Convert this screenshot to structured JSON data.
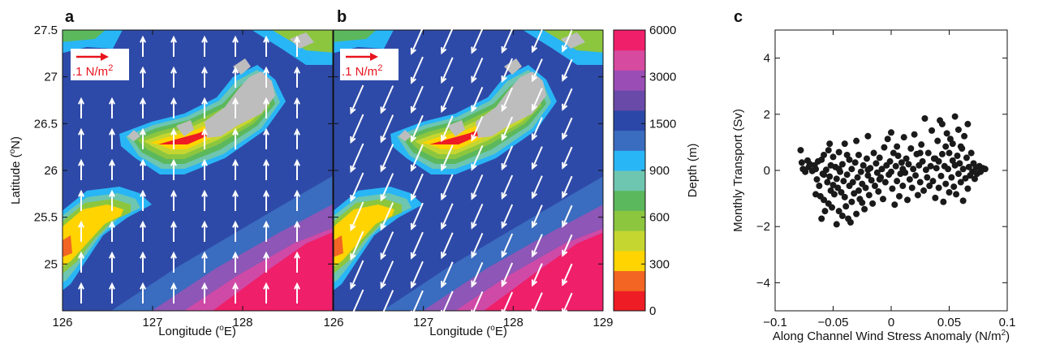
{
  "panels": {
    "a": "a",
    "b": "b",
    "c": "c"
  },
  "map_axes": {
    "xlabel_prefix": "Longitude (",
    "xlabel_sup": "o",
    "xlabel_suffix": "E)",
    "ylabel_prefix": "Latitude (",
    "ylabel_sup": "o",
    "ylabel_suffix": "N)",
    "xlim": [
      126,
      129
    ],
    "ylim": [
      24.5,
      27.5
    ],
    "xticks": [
      "126",
      "127",
      "128"
    ],
    "xticks_b": [
      "126",
      "127",
      "128",
      "129"
    ],
    "yticks": [
      "27.5",
      "27",
      "26.5",
      "26",
      "25.5",
      "25"
    ],
    "ytick_values": [
      27.5,
      27,
      26.5,
      26,
      25.5,
      25
    ]
  },
  "scale_vector": {
    "label_main": ".1 N/m",
    "label_sup": "2",
    "color": "#e8141e"
  },
  "colorbar": {
    "label": "Depth (m)",
    "ticks": [
      "6000",
      "3000",
      "1500",
      "900",
      "600",
      "300",
      "0"
    ],
    "colors": [
      "#ee1c24",
      "#f26522",
      "#ffd400",
      "#c6d630",
      "#8cc63f",
      "#5cb85c",
      "#6ec6b0",
      "#29b6f6",
      "#3a6cc0",
      "#2b48a8",
      "#6a4aa8",
      "#9b4db6",
      "#d64aa0",
      "#f01f6a"
    ]
  },
  "colors": {
    "deep_ocean": "#2e4aa8",
    "mid_ocean": "#3a6cc0",
    "abyss": "#ef1f6a",
    "abyss_mid": "#cf4aa6",
    "abyss_edge": "#8e56b6",
    "land": "#bdbdbd",
    "vector": "#ffffff"
  },
  "chart_data": {
    "type": "scatter",
    "xlabel_main": "Along Channel Wind Stress Anomaly (N/m",
    "xlabel_sup": "2",
    "xlabel_end": ")",
    "ylabel": "Monthly Transport (Sv)",
    "xlim": [
      -0.1,
      0.1
    ],
    "ylim": [
      -5,
      5
    ],
    "xticks": [
      "−0.1",
      "−0.05",
      "0",
      "0.05",
      "0.1"
    ],
    "xtick_values": [
      -0.1,
      -0.05,
      0,
      0.05,
      0.1
    ],
    "yticks": [
      "4",
      "2",
      "0",
      "−2",
      "−4"
    ],
    "ytick_values": [
      4,
      2,
      0,
      -2,
      -4
    ],
    "grid": false,
    "points": [
      [
        -0.078,
        0.72
      ],
      [
        -0.077,
        0.28
      ],
      [
        -0.076,
        0.05
      ],
      [
        -0.074,
        -0.05
      ],
      [
        -0.072,
        0.35
      ],
      [
        -0.071,
        0.12
      ],
      [
        -0.07,
        0.22
      ],
      [
        -0.068,
        -0.02
      ],
      [
        -0.066,
        0.18
      ],
      [
        -0.065,
        0.05
      ],
      [
        -0.064,
        -0.32
      ],
      [
        -0.063,
        0.32
      ],
      [
        -0.062,
        -0.55
      ],
      [
        -0.061,
        -0.92
      ],
      [
        -0.06,
        -1.72
      ],
      [
        -0.06,
        0.38
      ],
      [
        -0.059,
        -0.12
      ],
      [
        -0.058,
        -1.05
      ],
      [
        -0.058,
        0.55
      ],
      [
        -0.057,
        -1.45
      ],
      [
        -0.056,
        0.02
      ],
      [
        -0.055,
        -0.42
      ],
      [
        -0.054,
        0.72
      ],
      [
        -0.054,
        -1.18
      ],
      [
        -0.053,
        -0.22
      ],
      [
        -0.052,
        0.18
      ],
      [
        -0.052,
        -0.72
      ],
      [
        -0.051,
        -1.32
      ],
      [
        -0.05,
        0.48
      ],
      [
        -0.05,
        -0.52
      ],
      [
        -0.049,
        -0.85
      ],
      [
        -0.048,
        0.12
      ],
      [
        -0.047,
        -1.92
      ],
      [
        -0.047,
        -0.3
      ],
      [
        -0.046,
        -0.62
      ],
      [
        -0.045,
        0.65
      ],
      [
        -0.045,
        -1.45
      ],
      [
        -0.044,
        -0.05
      ],
      [
        -0.043,
        -0.78
      ],
      [
        -0.042,
        0.22
      ],
      [
        -0.042,
        -1.62
      ],
      [
        -0.041,
        -0.38
      ],
      [
        -0.04,
        -0.95
      ],
      [
        -0.04,
        0.95
      ],
      [
        -0.039,
        -1.28
      ],
      [
        -0.038,
        -0.15
      ],
      [
        -0.037,
        -1.72
      ],
      [
        -0.036,
        0.38
      ],
      [
        -0.036,
        -0.55
      ],
      [
        -0.035,
        -1.85
      ],
      [
        -0.034,
        -1.12
      ],
      [
        -0.034,
        0.05
      ],
      [
        -0.033,
        -0.42
      ],
      [
        -0.032,
        -0.82
      ],
      [
        -0.031,
        0.28
      ],
      [
        -0.03,
        -1.55
      ],
      [
        -0.03,
        1.05
      ],
      [
        -0.029,
        -0.25
      ],
      [
        -0.028,
        -0.72
      ],
      [
        -0.028,
        0.55
      ],
      [
        -0.027,
        -1.02
      ],
      [
        -0.026,
        -0.05
      ],
      [
        -0.025,
        -0.48
      ],
      [
        -0.024,
        0.18
      ],
      [
        -0.023,
        -1.38
      ],
      [
        -0.022,
        -0.62
      ],
      [
        -0.021,
        0.42
      ],
      [
        -0.02,
        -0.18
      ],
      [
        -0.02,
        1.22
      ],
      [
        -0.019,
        -0.88
      ],
      [
        -0.018,
        0.08
      ],
      [
        -0.017,
        -0.35
      ],
      [
        -0.016,
        -1.18
      ],
      [
        -0.015,
        0.62
      ],
      [
        -0.014,
        -0.55
      ],
      [
        -0.013,
        0.25
      ],
      [
        -0.012,
        -0.08
      ],
      [
        -0.011,
        -0.75
      ],
      [
        -0.01,
        0.45
      ],
      [
        -0.009,
        -0.25
      ],
      [
        -0.008,
        0.05
      ],
      [
        -0.007,
        -1.02
      ],
      [
        -0.006,
        0.82
      ],
      [
        -0.005,
        -0.42
      ],
      [
        -0.004,
        0.18
      ],
      [
        -0.003,
        1.12
      ],
      [
        -0.002,
        -0.15
      ],
      [
        -0.001,
        0.32
      ],
      [
        0.0,
        1.35
      ],
      [
        0.0,
        -0.05
      ],
      [
        0.001,
        -0.65
      ],
      [
        0.002,
        0.62
      ],
      [
        0.003,
        -1.22
      ],
      [
        0.004,
        0.15
      ],
      [
        0.005,
        -0.38
      ],
      [
        0.006,
        0.52
      ],
      [
        0.007,
        -0.92
      ],
      [
        0.008,
        -0.12
      ],
      [
        0.009,
        0.28
      ],
      [
        0.01,
        -0.55
      ],
      [
        0.011,
        1.18
      ],
      [
        0.012,
        -0.08
      ],
      [
        0.013,
        0.42
      ],
      [
        0.014,
        -1.05
      ],
      [
        0.015,
        0.22
      ],
      [
        0.016,
        -0.32
      ],
      [
        0.017,
        0.78
      ],
      [
        0.018,
        -0.62
      ],
      [
        0.019,
        0.05
      ],
      [
        0.02,
        1.28
      ],
      [
        0.021,
        -0.18
      ],
      [
        0.022,
        0.58
      ],
      [
        0.023,
        -0.88
      ],
      [
        0.024,
        0.18
      ],
      [
        0.025,
        -0.42
      ],
      [
        0.026,
        0.92
      ],
      [
        0.027,
        0.32
      ],
      [
        0.028,
        -0.72
      ],
      [
        0.029,
        1.85
      ],
      [
        0.03,
        0.02
      ],
      [
        0.031,
        -0.25
      ],
      [
        0.032,
        0.62
      ],
      [
        0.033,
        -0.55
      ],
      [
        0.034,
        0.15
      ],
      [
        0.035,
        1.42
      ],
      [
        0.036,
        -0.38
      ],
      [
        0.037,
        0.42
      ],
      [
        0.038,
        -0.98
      ],
      [
        0.039,
        0.08
      ],
      [
        0.04,
        1.05
      ],
      [
        0.041,
        -0.62
      ],
      [
        0.041,
        0.32
      ],
      [
        0.042,
        1.78
      ],
      [
        0.043,
        -0.2
      ],
      [
        0.044,
        0.58
      ],
      [
        0.044,
        1.65
      ],
      [
        0.045,
        -1.12
      ],
      [
        0.046,
        0.15
      ],
      [
        0.047,
        0.85
      ],
      [
        0.047,
        -0.48
      ],
      [
        0.048,
        1.32
      ],
      [
        0.049,
        0.05
      ],
      [
        0.05,
        -0.78
      ],
      [
        0.05,
        0.62
      ],
      [
        0.051,
        1.12
      ],
      [
        0.052,
        -0.25
      ],
      [
        0.053,
        0.35
      ],
      [
        0.053,
        0.95
      ],
      [
        0.054,
        -0.58
      ],
      [
        0.055,
        0.18
      ],
      [
        0.055,
        1.92
      ],
      [
        0.056,
        -0.85
      ],
      [
        0.057,
        0.52
      ],
      [
        0.058,
        -0.12
      ],
      [
        0.058,
        1.45
      ],
      [
        0.059,
        0.25
      ],
      [
        0.06,
        -0.42
      ],
      [
        0.061,
        0.78
      ],
      [
        0.062,
        -1.08
      ],
      [
        0.062,
        0.05
      ],
      [
        0.063,
        1.22
      ],
      [
        0.064,
        -0.28
      ],
      [
        0.065,
        0.45
      ],
      [
        0.066,
        -0.65
      ],
      [
        0.066,
        1.65
      ],
      [
        0.067,
        0.12
      ],
      [
        0.068,
        -0.18
      ],
      [
        0.069,
        0.62
      ],
      [
        0.07,
        -0.05
      ],
      [
        0.071,
        0.25
      ],
      [
        0.072,
        -0.3
      ],
      [
        0.073,
        0.1
      ],
      [
        0.074,
        -0.12
      ],
      [
        0.076,
        0.15
      ],
      [
        0.077,
        -0.05
      ],
      [
        0.079,
        0.08
      ],
      [
        0.081,
        0.05
      ],
      [
        -0.045,
        0.05
      ],
      [
        -0.02,
        0.02
      ],
      [
        0.01,
        0.05
      ],
      [
        -0.065,
        -0.85
      ],
      [
        -0.058,
        -0.15
      ],
      [
        -0.038,
        0.55
      ],
      [
        -0.01,
        -0.32
      ],
      [
        0.005,
        0.85
      ],
      [
        0.025,
        0.62
      ],
      [
        0.038,
        0.42
      ],
      [
        0.06,
        0.85
      ],
      [
        -0.053,
        0.95
      ],
      [
        -0.025,
        -1.15
      ]
    ]
  }
}
